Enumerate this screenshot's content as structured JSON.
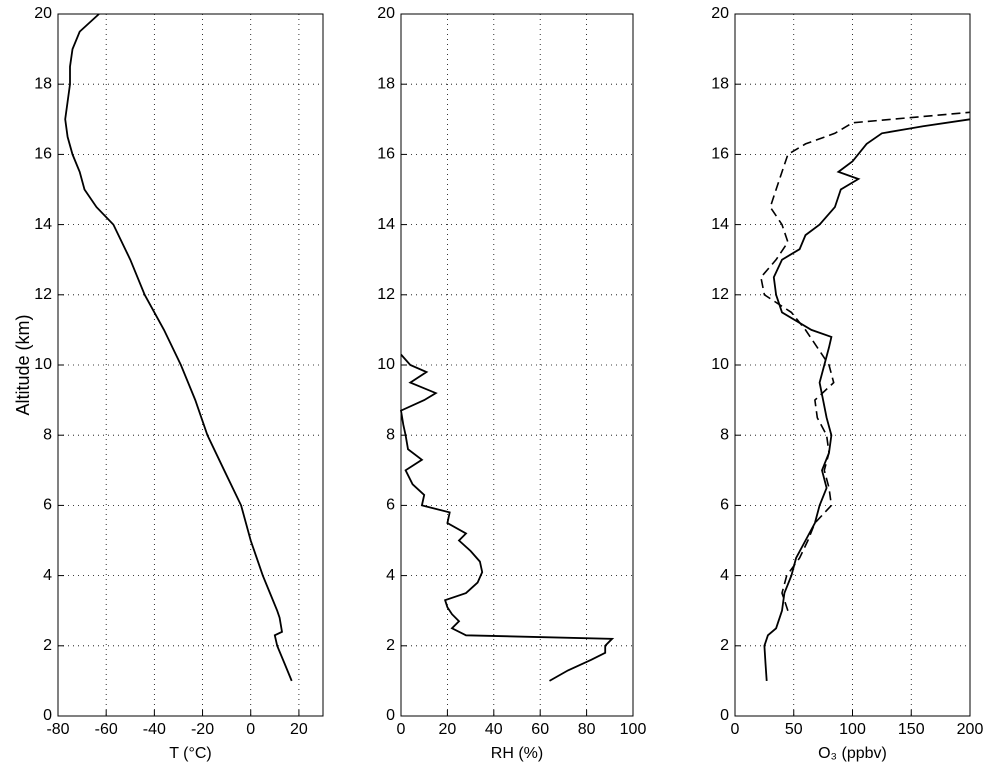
{
  "chart_data": [
    {
      "type": "line",
      "xlabel": "T (°C)",
      "ylabel": "Altitude (km)",
      "xlim": [
        -80,
        30
      ],
      "xticks": [
        -80,
        -60,
        -40,
        -20,
        0,
        20
      ],
      "ylim": [
        0,
        20
      ],
      "yticks": [
        0,
        2,
        4,
        6,
        8,
        10,
        12,
        14,
        16,
        18,
        20
      ],
      "grid": true,
      "series": [
        {
          "color": "#000000",
          "linestyle": "solid",
          "x": [
            17,
            14,
            11,
            10,
            13,
            12,
            11,
            8,
            5,
            0,
            -4,
            -11,
            -18,
            -23,
            -29,
            -36,
            -44,
            -50,
            -57,
            -64,
            -69,
            -71,
            -74,
            -76,
            -77,
            -76,
            -75,
            -75,
            -74,
            -71,
            -63
          ],
          "values": [
            1,
            1.5,
            2,
            2.3,
            2.4,
            2.8,
            3,
            3.5,
            4,
            5,
            6,
            7,
            8,
            9,
            10,
            11,
            12,
            13,
            14,
            14.5,
            15,
            15.5,
            16,
            16.5,
            17,
            17.5,
            18,
            18.5,
            19,
            19.5,
            20
          ]
        }
      ]
    },
    {
      "type": "line",
      "xlabel": "RH (%)",
      "xlim": [
        0,
        100
      ],
      "xticks": [
        0,
        20,
        40,
        60,
        80,
        100
      ],
      "ylim": [
        0,
        20
      ],
      "yticks": [
        0,
        2,
        4,
        6,
        8,
        10,
        12,
        14,
        16,
        18,
        20
      ],
      "grid": true,
      "series": [
        {
          "color": "#000000",
          "linestyle": "solid",
          "x": [
            64,
            72,
            82,
            88,
            88,
            91,
            28,
            22,
            25,
            22,
            20,
            19,
            28,
            33,
            35,
            34,
            30,
            25,
            28,
            20,
            21,
            9,
            10,
            5,
            2,
            9,
            3,
            2,
            1,
            0,
            10,
            15,
            4,
            11,
            4,
            0
          ],
          "values": [
            1,
            1.3,
            1.6,
            1.8,
            2,
            2.2,
            2.3,
            2.5,
            2.7,
            2.9,
            3.1,
            3.3,
            3.5,
            3.8,
            4.1,
            4.4,
            4.7,
            5,
            5.2,
            5.5,
            5.8,
            6,
            6.3,
            6.6,
            7,
            7.3,
            7.6,
            8,
            8.3,
            8.7,
            9,
            9.2,
            9.5,
            9.8,
            10,
            10.3
          ]
        }
      ]
    },
    {
      "type": "line",
      "xlabel": "O₃ (ppbv)",
      "xlim": [
        0,
        200
      ],
      "xticks": [
        0,
        50,
        100,
        150,
        200
      ],
      "ylim": [
        0,
        20
      ],
      "yticks": [
        0,
        2,
        4,
        6,
        8,
        10,
        12,
        14,
        16,
        18,
        20
      ],
      "grid": true,
      "series": [
        {
          "color": "#000000",
          "linestyle": "solid",
          "x": [
            27,
            26,
            25,
            28,
            35,
            40,
            42,
            48,
            52,
            60,
            68,
            72,
            78,
            74,
            80,
            82,
            78,
            75,
            72,
            76,
            80,
            82,
            65,
            40,
            35,
            33,
            40,
            55,
            60,
            72,
            85,
            90,
            105,
            88,
            100,
            112,
            125,
            160,
            200
          ],
          "values": [
            1,
            1.5,
            2,
            2.3,
            2.5,
            3,
            3.5,
            4,
            4.5,
            5,
            5.5,
            6,
            6.5,
            7,
            7.5,
            8,
            8.5,
            9,
            9.5,
            10,
            10.5,
            10.8,
            11,
            11.5,
            12,
            12.5,
            13,
            13.3,
            13.7,
            14,
            14.5,
            15,
            15.3,
            15.5,
            15.8,
            16.3,
            16.6,
            16.8,
            17
          ]
        },
        {
          "color": "#000000",
          "linestyle": "dashed",
          "x": [
            45,
            40,
            44,
            55,
            62,
            68,
            82,
            80,
            76,
            80,
            78,
            70,
            68,
            84,
            80,
            70,
            60,
            48,
            25,
            22,
            35,
            45,
            40,
            30,
            35,
            40,
            45,
            60,
            85,
            100,
            200
          ],
          "values": [
            3,
            3.5,
            4,
            4.5,
            5,
            5.5,
            6,
            6.5,
            7,
            7.5,
            8,
            8.5,
            9,
            9.5,
            10,
            10.5,
            11,
            11.5,
            12,
            12.5,
            13,
            13.5,
            14,
            14.5,
            15,
            15.5,
            16,
            16.3,
            16.6,
            16.9,
            17.2
          ]
        }
      ]
    }
  ]
}
